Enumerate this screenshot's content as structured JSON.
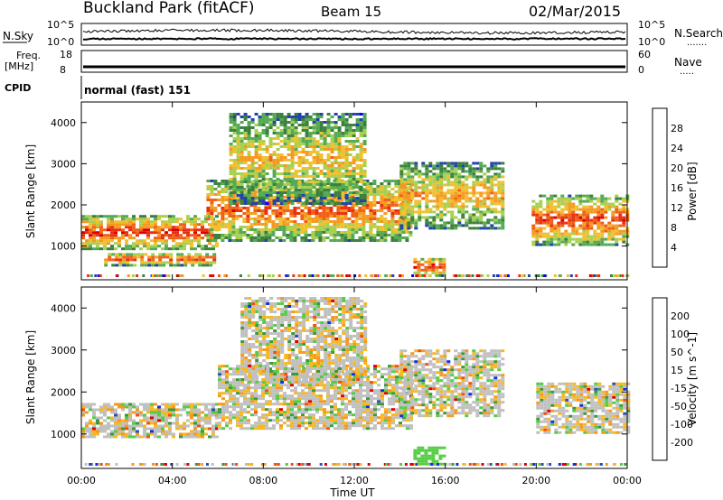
{
  "header": {
    "site_title": "Buckland Park (fitACF)",
    "beam": "Beam 15",
    "date": "02/Mar/2015"
  },
  "summary_panels": {
    "nsky_label": "N.Sky",
    "nsearch_label": "N.Search",
    "freq_label_1": "Freq.",
    "freq_label_2": "[MHz]",
    "nave_label": "Nave",
    "cpid_label": "CPID",
    "noise_ticks": [
      "10^5",
      "10^0"
    ],
    "noise_ticks_right": [
      "10^5",
      "10^0"
    ],
    "freq_ticks": [
      "18",
      "8"
    ],
    "nave_ticks": [
      "60",
      "0"
    ],
    "cpid_text": "normal (fast) 151"
  },
  "colors": {
    "power_scale": [
      "#0000ff",
      "#2244aa",
      "#3d7f3d",
      "#55aa55",
      "#a8d050",
      "#f0c030",
      "#f59a20",
      "#f06018",
      "#e83010",
      "#dd0000"
    ],
    "velocity_scale": [
      "#e00000",
      "#f05010",
      "#f59a20",
      "#f7b820",
      "#c0c0c0",
      "#c0c0c0",
      "#55cc44",
      "#3a9a3a",
      "#3050b0",
      "#1030e0"
    ]
  },
  "chart_data": [
    {
      "type": "heatmap",
      "panel": "power",
      "xlabel": "Time UT",
      "ylabel": "Slant Range [km]",
      "x_ticks": [
        "00:00",
        "04:00",
        "08:00",
        "12:00",
        "16:00",
        "20:00",
        "00:00"
      ],
      "x_range_hours": [
        0,
        24
      ],
      "ylim": [
        180,
        4500
      ],
      "y_ticks": [
        "1000",
        "2000",
        "3000",
        "4000"
      ],
      "colorbar_label": "Power [dB]",
      "colorbar_ticks": [
        "4",
        "8",
        "12",
        "16",
        "20",
        "24",
        "28"
      ],
      "colorbar_range": [
        0,
        30
      ],
      "bands": [
        {
          "t0": 0,
          "t1": 6,
          "r0": 900,
          "r1": 1700,
          "level": 0.9
        },
        {
          "t0": 1,
          "t1": 5.8,
          "r0": 500,
          "r1": 800,
          "level": 0.85
        },
        {
          "t0": 5.5,
          "t1": 14.5,
          "r0": 1100,
          "r1": 2600,
          "level": 0.8
        },
        {
          "t0": 6.5,
          "t1": 12.5,
          "r0": 2000,
          "r1": 4200,
          "level": 0.6
        },
        {
          "t0": 14,
          "t1": 18.6,
          "r0": 1400,
          "r1": 3000,
          "level": 0.65
        },
        {
          "t0": 14.6,
          "t1": 16,
          "r0": 250,
          "r1": 700,
          "level": 0.9
        },
        {
          "t0": 19.8,
          "t1": 24,
          "r0": 1000,
          "r1": 2200,
          "level": 0.85
        }
      ]
    },
    {
      "type": "heatmap",
      "panel": "velocity",
      "xlabel": "Time UT",
      "ylabel": "Slant Range [km]",
      "x_ticks": [
        "00:00",
        "04:00",
        "08:00",
        "12:00",
        "16:00",
        "20:00",
        "00:00"
      ],
      "x_range_hours": [
        0,
        24
      ],
      "ylim": [
        180,
        4500
      ],
      "y_ticks": [
        "1000",
        "2000",
        "3000",
        "4000"
      ],
      "colorbar_label": "Velocity [m s^-1]",
      "colorbar_ticks": [
        "200",
        "100",
        "50",
        "15",
        "-15",
        "-50",
        "-100",
        "-200"
      ],
      "colorbar_range": [
        -250,
        250
      ],
      "bands": [
        {
          "t0": 0,
          "t1": 6,
          "r0": 900,
          "r1": 1700,
          "level": 0.5
        },
        {
          "t0": 6,
          "t1": 14.5,
          "r0": 1100,
          "r1": 2600,
          "level": 0.35
        },
        {
          "t0": 7,
          "t1": 12.5,
          "r0": 2200,
          "r1": 4200,
          "level": 0.3
        },
        {
          "t0": 14,
          "t1": 18.6,
          "r0": 1400,
          "r1": 3000,
          "level": 0.35
        },
        {
          "t0": 20,
          "t1": 24,
          "r0": 1000,
          "r1": 2200,
          "level": 0.5
        },
        {
          "t0": 14.6,
          "t1": 16,
          "r0": 250,
          "r1": 700,
          "level": 0.7
        }
      ]
    }
  ]
}
